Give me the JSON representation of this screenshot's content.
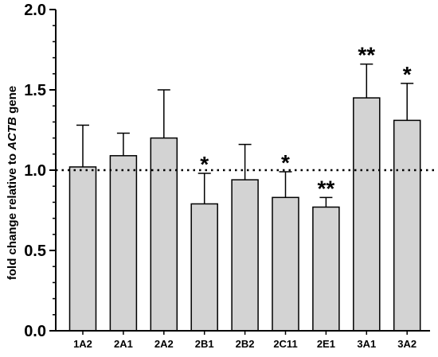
{
  "chart_data": {
    "type": "bar",
    "title": "",
    "xlabel": "",
    "ylabel": {
      "prefix": "fold change relative to ",
      "gene": "ACTB",
      "suffix": " gene"
    },
    "ylim": [
      0.0,
      2.0
    ],
    "yticks": [
      0.0,
      0.5,
      1.0,
      1.5,
      2.0
    ],
    "ytick_labels": [
      "0.0",
      "0.5",
      "1.0",
      "1.5",
      "2.0"
    ],
    "reference_line": {
      "y": 1.0,
      "style": "dotted"
    },
    "categories": [
      "1A2",
      "2A1",
      "2A2",
      "2B1",
      "2B2",
      "2C11",
      "2E1",
      "3A1",
      "3A2"
    ],
    "values": [
      1.02,
      1.09,
      1.2,
      0.79,
      0.94,
      0.83,
      0.77,
      1.45,
      1.31
    ],
    "errors": [
      0.26,
      0.14,
      0.3,
      0.19,
      0.22,
      0.16,
      0.06,
      0.21,
      0.23
    ],
    "significance": [
      "",
      "",
      "",
      "*",
      "",
      "*",
      "**",
      "**",
      "*"
    ],
    "colors": {
      "bar_fill": "#d3d3d3",
      "bar_stroke": "#000000",
      "axis": "#000000"
    },
    "grid": false,
    "legend": "none"
  }
}
